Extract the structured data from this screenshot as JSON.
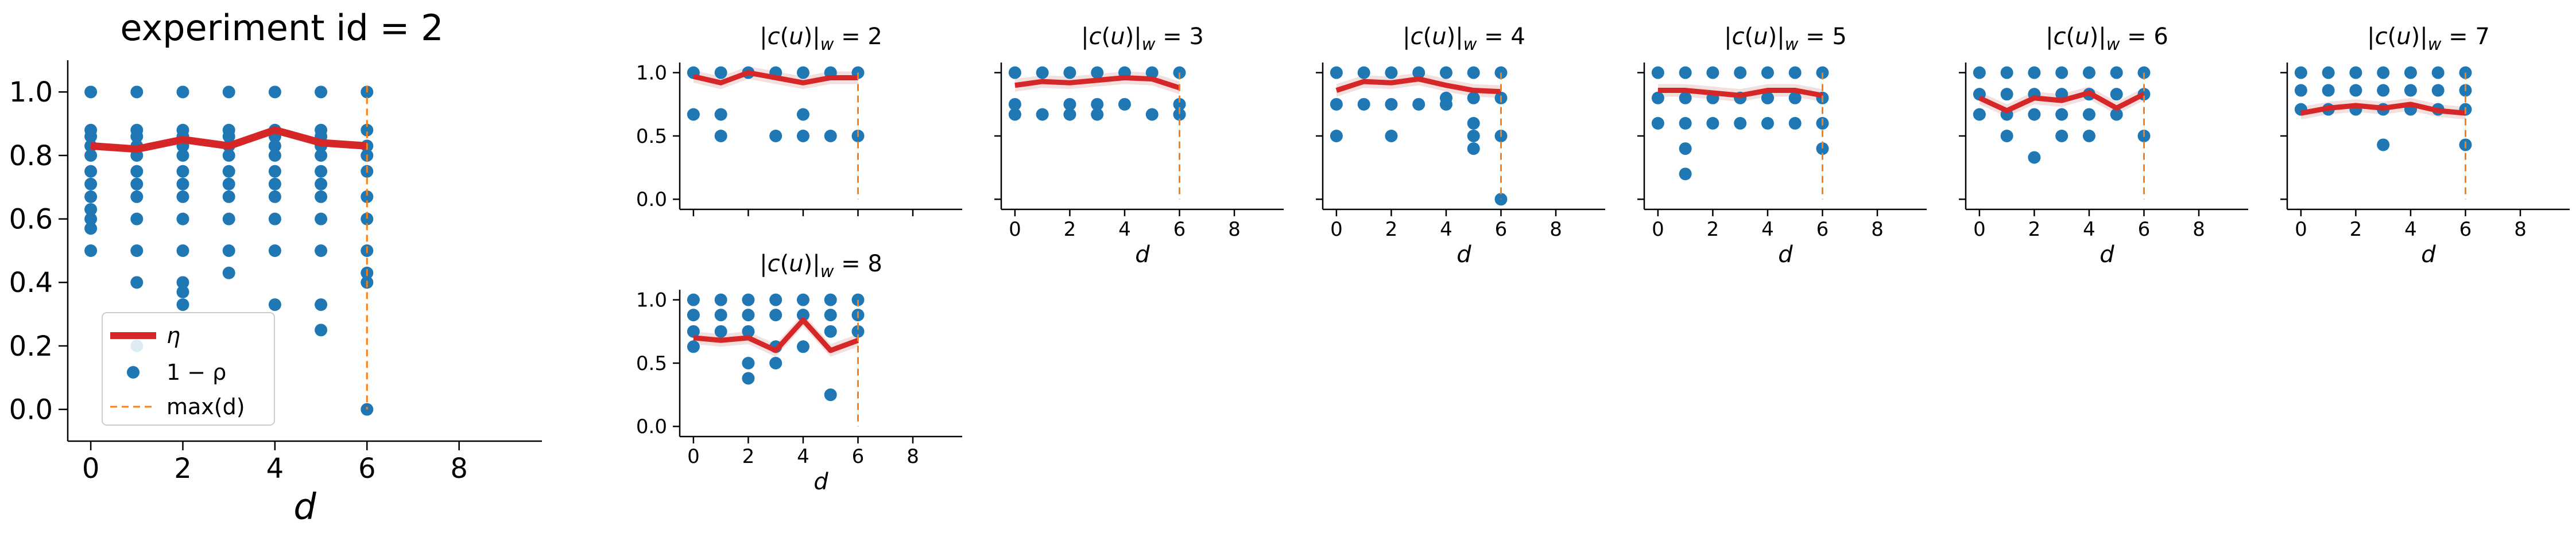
{
  "figure": {
    "colors": {
      "eta": "#d62728",
      "points": "#1f77b4",
      "max": "#ff7f0e",
      "band": "#e6b9b9"
    },
    "legend": {
      "eta": "η",
      "one_minus_rho": "1 − ρ",
      "max_d": "max(d)"
    },
    "legend_placement": "lower-left of main panel"
  },
  "chart_data": [
    {
      "type": "scatter",
      "title": "experiment id = 2",
      "xlabel": "d",
      "ylabel": "",
      "xlim": [
        -0.5,
        9.8
      ],
      "ylim": [
        -0.1,
        1.1
      ],
      "xticks": [
        "0",
        "2",
        "4",
        "6",
        "8"
      ],
      "yticks": [
        "0.0",
        "0.2",
        "0.4",
        "0.6",
        "0.8",
        "1.0"
      ],
      "grid": false,
      "max_d": 6,
      "points": {
        "d": [
          0,
          0,
          0,
          0,
          0,
          0,
          0,
          0,
          0,
          0,
          0,
          0,
          1,
          1,
          1,
          1,
          1,
          1,
          1,
          1,
          1,
          1,
          1,
          1,
          2,
          2,
          2,
          2,
          2,
          2,
          2,
          2,
          2,
          2,
          2,
          2,
          2,
          3,
          3,
          3,
          3,
          3,
          3,
          3,
          3,
          3,
          3,
          3,
          4,
          4,
          4,
          4,
          4,
          4,
          4,
          4,
          4,
          4,
          4,
          5,
          5,
          5,
          5,
          5,
          5,
          5,
          5,
          5,
          5,
          5,
          5,
          6,
          6,
          6,
          6,
          6,
          6,
          6,
          6,
          6,
          6,
          6
        ],
        "values": [
          1.0,
          0.88,
          0.86,
          0.83,
          0.8,
          0.75,
          0.71,
          0.67,
          0.63,
          0.6,
          0.57,
          0.5,
          1.0,
          0.88,
          0.86,
          0.83,
          0.8,
          0.75,
          0.71,
          0.67,
          0.6,
          0.5,
          0.4,
          0.2,
          1.0,
          0.88,
          0.86,
          0.83,
          0.8,
          0.75,
          0.71,
          0.67,
          0.6,
          0.5,
          0.4,
          0.37,
          0.33,
          1.0,
          0.88,
          0.86,
          0.83,
          0.8,
          0.75,
          0.71,
          0.67,
          0.6,
          0.5,
          0.43,
          1.0,
          0.88,
          0.86,
          0.83,
          0.8,
          0.75,
          0.71,
          0.67,
          0.6,
          0.5,
          0.33,
          1.0,
          0.88,
          0.86,
          0.83,
          0.8,
          0.75,
          0.71,
          0.67,
          0.6,
          0.5,
          0.33,
          0.25,
          1.0,
          0.88,
          0.83,
          0.8,
          0.75,
          0.67,
          0.6,
          0.5,
          0.43,
          0.4,
          0.0
        ]
      },
      "eta": {
        "d": [
          0,
          1,
          2,
          3,
          4,
          5,
          6
        ],
        "values": [
          0.83,
          0.82,
          0.85,
          0.83,
          0.88,
          0.84,
          0.83
        ]
      }
    },
    {
      "type": "scatter",
      "title": "|c(u)|_w = 2",
      "xlabel": "",
      "ylabel": "",
      "xlim": [
        -0.5,
        9.8
      ],
      "ylim": [
        -0.08,
        1.08
      ],
      "yticks": [
        "0.0",
        "0.5",
        "1.0"
      ],
      "xticks": [],
      "grid": false,
      "max_d": 6,
      "points": {
        "d": [
          0,
          0,
          1,
          1,
          1,
          2,
          3,
          3,
          4,
          4,
          4,
          5,
          5,
          6,
          6
        ],
        "values": [
          1.0,
          0.67,
          1.0,
          0.67,
          0.5,
          1.0,
          1.0,
          0.5,
          1.0,
          0.67,
          0.5,
          1.0,
          0.5,
          1.0,
          0.5
        ]
      },
      "eta": {
        "d": [
          0,
          1,
          2,
          3,
          4,
          5,
          6
        ],
        "values": [
          0.97,
          0.92,
          1.0,
          0.96,
          0.92,
          0.96,
          0.96
        ]
      }
    },
    {
      "type": "scatter",
      "title": "|c(u)|_w = 3",
      "xlabel": "d",
      "ylabel": "",
      "xlim": [
        -0.5,
        9.8
      ],
      "ylim": [
        -0.08,
        1.08
      ],
      "yticks": [],
      "xticks": [
        "0",
        "2",
        "4",
        "6",
        "8"
      ],
      "grid": false,
      "max_d": 6,
      "points": {
        "d": [
          0,
          0,
          0,
          1,
          1,
          2,
          2,
          2,
          3,
          3,
          3,
          4,
          4,
          5,
          5,
          6,
          6,
          6
        ],
        "values": [
          1.0,
          0.75,
          0.67,
          1.0,
          0.67,
          1.0,
          0.75,
          0.67,
          1.0,
          0.75,
          0.67,
          1.0,
          0.75,
          1.0,
          0.67,
          1.0,
          0.75,
          0.67
        ]
      },
      "eta": {
        "d": [
          0,
          1,
          2,
          3,
          4,
          5,
          6
        ],
        "values": [
          0.9,
          0.93,
          0.92,
          0.94,
          0.96,
          0.95,
          0.88
        ]
      }
    },
    {
      "type": "scatter",
      "title": "|c(u)|_w = 4",
      "xlabel": "d",
      "ylabel": "",
      "xlim": [
        -0.5,
        9.8
      ],
      "ylim": [
        -0.08,
        1.08
      ],
      "yticks": [],
      "xticks": [
        "0",
        "2",
        "4",
        "6",
        "8"
      ],
      "grid": false,
      "max_d": 6,
      "points": {
        "d": [
          0,
          0,
          0,
          1,
          1,
          2,
          2,
          2,
          3,
          3,
          4,
          4,
          4,
          5,
          5,
          5,
          5,
          5,
          6,
          6,
          6,
          6
        ],
        "values": [
          1.0,
          0.75,
          0.5,
          1.0,
          0.75,
          1.0,
          0.75,
          0.5,
          1.0,
          0.75,
          1.0,
          0.8,
          0.75,
          1.0,
          0.8,
          0.6,
          0.5,
          0.4,
          1.0,
          0.8,
          0.5,
          0.0
        ]
      },
      "eta": {
        "d": [
          0,
          1,
          2,
          3,
          4,
          5,
          6
        ],
        "values": [
          0.86,
          0.93,
          0.92,
          0.95,
          0.9,
          0.86,
          0.85
        ]
      }
    },
    {
      "type": "scatter",
      "title": "|c(u)|_w = 5",
      "xlabel": "d",
      "ylabel": "",
      "xlim": [
        -0.5,
        9.8
      ],
      "ylim": [
        -0.08,
        1.08
      ],
      "yticks": [],
      "xticks": [
        "0",
        "2",
        "4",
        "6",
        "8"
      ],
      "grid": false,
      "max_d": 6,
      "points": {
        "d": [
          0,
          0,
          0,
          1,
          1,
          1,
          1,
          1,
          2,
          2,
          2,
          3,
          3,
          3,
          4,
          4,
          4,
          4,
          5,
          5,
          5,
          6,
          6,
          6,
          6
        ],
        "values": [
          1.0,
          0.8,
          0.6,
          1.0,
          0.8,
          0.6,
          0.4,
          0.2,
          1.0,
          0.8,
          0.6,
          1.0,
          0.8,
          0.6,
          1.0,
          0.8,
          0.8,
          0.6,
          1.0,
          0.8,
          0.6,
          1.0,
          0.8,
          0.6,
          0.4
        ]
      },
      "eta": {
        "d": [
          0,
          1,
          2,
          3,
          4,
          5,
          6
        ],
        "values": [
          0.86,
          0.86,
          0.84,
          0.82,
          0.86,
          0.86,
          0.82
        ]
      }
    },
    {
      "type": "scatter",
      "title": "|c(u)|_w = 6",
      "xlabel": "d",
      "ylabel": "",
      "xlim": [
        -0.5,
        9.8
      ],
      "ylim": [
        -0.08,
        1.08
      ],
      "yticks": [],
      "xticks": [
        "0",
        "2",
        "4",
        "6",
        "8"
      ],
      "grid": false,
      "max_d": 6,
      "points": {
        "d": [
          0,
          0,
          0,
          1,
          1,
          1,
          1,
          2,
          2,
          2,
          2,
          3,
          3,
          3,
          3,
          4,
          4,
          4,
          4,
          5,
          5,
          5,
          6,
          6,
          6
        ],
        "values": [
          1.0,
          0.83,
          0.67,
          1.0,
          0.83,
          0.67,
          0.5,
          1.0,
          0.83,
          0.67,
          0.33,
          1.0,
          0.83,
          0.67,
          0.5,
          1.0,
          0.83,
          0.67,
          0.5,
          1.0,
          0.83,
          0.67,
          1.0,
          0.83,
          0.5
        ]
      },
      "eta": {
        "d": [
          0,
          1,
          2,
          3,
          4,
          5,
          6
        ],
        "values": [
          0.8,
          0.7,
          0.8,
          0.78,
          0.84,
          0.72,
          0.83
        ]
      }
    },
    {
      "type": "scatter",
      "title": "|c(u)|_w = 7",
      "xlabel": "d",
      "ylabel": "",
      "xlim": [
        -0.5,
        9.8
      ],
      "ylim": [
        -0.08,
        1.08
      ],
      "yticks": [],
      "xticks": [
        "0",
        "2",
        "4",
        "6",
        "8"
      ],
      "grid": false,
      "max_d": 6,
      "points": {
        "d": [
          0,
          0,
          0,
          1,
          1,
          1,
          2,
          2,
          2,
          3,
          3,
          3,
          3,
          4,
          4,
          4,
          5,
          5,
          5,
          6,
          6,
          6,
          6
        ],
        "values": [
          1.0,
          0.86,
          0.71,
          1.0,
          0.86,
          0.71,
          1.0,
          0.86,
          0.71,
          1.0,
          0.86,
          0.71,
          0.43,
          1.0,
          0.86,
          0.71,
          1.0,
          0.86,
          0.71,
          1.0,
          0.86,
          0.71,
          0.43
        ]
      },
      "eta": {
        "d": [
          0,
          1,
          2,
          3,
          4,
          5,
          6
        ],
        "values": [
          0.68,
          0.72,
          0.74,
          0.72,
          0.75,
          0.7,
          0.68
        ]
      }
    },
    {
      "type": "scatter",
      "title": "|c(u)|_w = 8",
      "xlabel": "d",
      "ylabel": "",
      "xlim": [
        -0.5,
        9.8
      ],
      "ylim": [
        -0.08,
        1.08
      ],
      "yticks": [
        "0.0",
        "0.5",
        "1.0"
      ],
      "xticks": [
        "0",
        "2",
        "4",
        "6",
        "8"
      ],
      "grid": false,
      "max_d": 6,
      "points": {
        "d": [
          0,
          0,
          0,
          0,
          1,
          1,
          1,
          2,
          2,
          2,
          2,
          2,
          3,
          3,
          3,
          3,
          4,
          4,
          4,
          5,
          5,
          5,
          5,
          6,
          6,
          6
        ],
        "values": [
          1.0,
          0.88,
          0.75,
          0.63,
          1.0,
          0.88,
          0.75,
          1.0,
          0.88,
          0.75,
          0.5,
          0.38,
          1.0,
          0.88,
          0.63,
          0.5,
          1.0,
          0.88,
          0.63,
          1.0,
          0.88,
          0.75,
          0.25,
          1.0,
          0.88,
          0.75
        ]
      },
      "eta": {
        "d": [
          0,
          1,
          2,
          3,
          4,
          5,
          6
        ],
        "values": [
          0.7,
          0.68,
          0.7,
          0.6,
          0.84,
          0.6,
          0.68
        ]
      }
    }
  ]
}
